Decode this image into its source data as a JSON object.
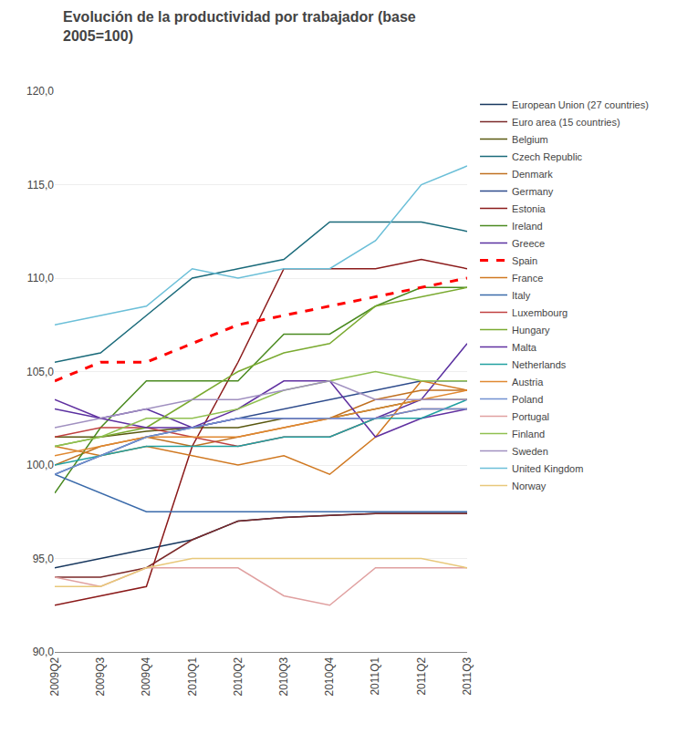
{
  "chart_data": {
    "type": "line",
    "title": "Evolución de la productividad por trabajador (base\n2005=100)",
    "categories": [
      "2009Q2",
      "2009Q3",
      "2009Q4",
      "2010Q1",
      "2010Q2",
      "2010Q3",
      "2010Q4",
      "2011Q1",
      "2011Q2",
      "2011Q3"
    ],
    "ylim": [
      90.0,
      120.0
    ],
    "yticks": [
      {
        "value": 90.0,
        "label": "90,0"
      },
      {
        "value": 95.0,
        "label": "95,0"
      },
      {
        "value": 100.0,
        "label": "100,0"
      },
      {
        "value": 105.0,
        "label": "105,0"
      },
      {
        "value": 110.0,
        "label": "110,0"
      },
      {
        "value": 115.0,
        "label": "115,0"
      },
      {
        "value": 120.0,
        "label": "120,0"
      }
    ],
    "grid": "y",
    "legend": "right",
    "series": [
      {
        "name": "European Union (27 countries)",
        "color": "#17375E",
        "line_style": "solid",
        "values": [
          94.5,
          95.0,
          95.5,
          96.0,
          97.0,
          97.2,
          97.3,
          97.4,
          97.4,
          97.4
        ]
      },
      {
        "name": "Euro area (15 countries)",
        "color": "#7B2929",
        "line_style": "solid",
        "values": [
          94.0,
          94.0,
          94.5,
          96.0,
          97.0,
          97.2,
          97.3,
          97.4,
          97.4,
          97.4
        ]
      },
      {
        "name": "Belgium",
        "color": "#595810",
        "line_style": "solid",
        "values": [
          101.5,
          101.5,
          101.8,
          102.0,
          102.0,
          102.5,
          102.5,
          103.0,
          103.5,
          103.5
        ]
      },
      {
        "name": "Czech Republic",
        "color": "#1A6A7A",
        "line_style": "solid",
        "values": [
          105.5,
          106.0,
          108.0,
          110.0,
          110.5,
          111.0,
          113.0,
          113.0,
          113.0,
          112.5
        ]
      },
      {
        "name": "Denmark",
        "color": "#C07020",
        "line_style": "solid",
        "values": [
          100.0,
          101.0,
          101.5,
          101.0,
          101.5,
          102.0,
          102.5,
          103.5,
          104.0,
          104.0
        ]
      },
      {
        "name": "Germany",
        "color": "#2E4B8C",
        "line_style": "solid",
        "values": [
          99.5,
          100.5,
          101.5,
          102.0,
          102.5,
          103.0,
          103.5,
          104.0,
          104.5,
          104.5
        ]
      },
      {
        "name": "Estonia",
        "color": "#8B1A1A",
        "line_style": "solid",
        "values": [
          92.5,
          93.0,
          93.5,
          101.0,
          105.5,
          110.5,
          110.5,
          110.5,
          111.0,
          110.5
        ]
      },
      {
        "name": "Ireland",
        "color": "#4A8A20",
        "line_style": "solid",
        "values": [
          98.5,
          102.0,
          104.5,
          104.5,
          104.5,
          107.0,
          107.0,
          108.5,
          109.5,
          109.5
        ]
      },
      {
        "name": "Greece",
        "color": "#5A30A0",
        "line_style": "solid",
        "values": [
          103.0,
          102.5,
          103.0,
          102.0,
          102.5,
          102.5,
          102.5,
          102.5,
          103.5,
          106.5
        ]
      },
      {
        "name": "Spain",
        "color": "#FF0000",
        "line_style": "dashed",
        "values": [
          104.5,
          105.5,
          105.5,
          106.5,
          107.5,
          108.0,
          108.5,
          109.0,
          109.5,
          110.0
        ]
      },
      {
        "name": "France",
        "color": "#D07820",
        "line_style": "solid",
        "values": [
          101.0,
          100.5,
          101.0,
          100.5,
          100.0,
          100.5,
          99.5,
          101.5,
          104.5,
          104.0
        ]
      },
      {
        "name": "Italy",
        "color": "#3A6AAA",
        "line_style": "solid",
        "values": [
          99.5,
          98.5,
          97.5,
          97.5,
          97.5,
          97.5,
          97.5,
          97.5,
          97.5,
          97.5
        ]
      },
      {
        "name": "Luxembourg",
        "color": "#C04040",
        "line_style": "solid",
        "values": [
          101.5,
          102.0,
          102.0,
          101.5,
          101.0,
          101.5,
          101.5,
          102.5,
          103.0,
          103.0
        ]
      },
      {
        "name": "Hungary",
        "color": "#7AAA30",
        "line_style": "solid",
        "values": [
          101.0,
          101.5,
          102.0,
          103.5,
          105.0,
          106.0,
          106.5,
          108.5,
          109.0,
          109.5
        ]
      },
      {
        "name": "Malta",
        "color": "#6030A0",
        "line_style": "solid",
        "values": [
          103.5,
          102.5,
          102.0,
          102.0,
          103.0,
          104.5,
          104.5,
          101.5,
          102.5,
          103.0
        ]
      },
      {
        "name": "Netherlands",
        "color": "#20A0A0",
        "line_style": "solid",
        "values": [
          100.0,
          100.5,
          101.0,
          101.0,
          101.0,
          101.5,
          101.5,
          102.5,
          102.5,
          103.5
        ]
      },
      {
        "name": "Austria",
        "color": "#E08830",
        "line_style": "solid",
        "values": [
          100.5,
          101.0,
          101.5,
          101.5,
          101.5,
          102.0,
          102.5,
          103.0,
          103.5,
          104.0
        ]
      },
      {
        "name": "Poland",
        "color": "#7090D0",
        "line_style": "solid",
        "values": [
          99.5,
          100.5,
          101.5,
          102.0,
          102.5,
          102.5,
          102.5,
          102.5,
          103.0,
          103.0
        ]
      },
      {
        "name": "Portugal",
        "color": "#E0A0A0",
        "line_style": "solid",
        "values": [
          94.0,
          93.5,
          94.5,
          94.5,
          94.5,
          93.0,
          92.5,
          94.5,
          94.5,
          94.5
        ]
      },
      {
        "name": "Finland",
        "color": "#90C050",
        "line_style": "solid",
        "values": [
          101.0,
          101.5,
          102.5,
          102.5,
          103.0,
          104.0,
          104.5,
          105.0,
          104.5,
          104.5
        ]
      },
      {
        "name": "Sweden",
        "color": "#A090C0",
        "line_style": "solid",
        "values": [
          102.0,
          102.5,
          103.0,
          103.5,
          103.5,
          104.0,
          104.5,
          103.5,
          103.5,
          103.5
        ]
      },
      {
        "name": "United Kingdom",
        "color": "#6BBFD8",
        "line_style": "solid",
        "values": [
          107.5,
          108.0,
          108.5,
          110.5,
          110.0,
          110.5,
          110.5,
          112.0,
          115.0,
          116.0
        ]
      },
      {
        "name": "Norway",
        "color": "#E8C87A",
        "line_style": "solid",
        "values": [
          93.5,
          93.5,
          94.5,
          95.0,
          95.0,
          95.0,
          95.0,
          95.0,
          95.0,
          94.5
        ]
      }
    ]
  }
}
